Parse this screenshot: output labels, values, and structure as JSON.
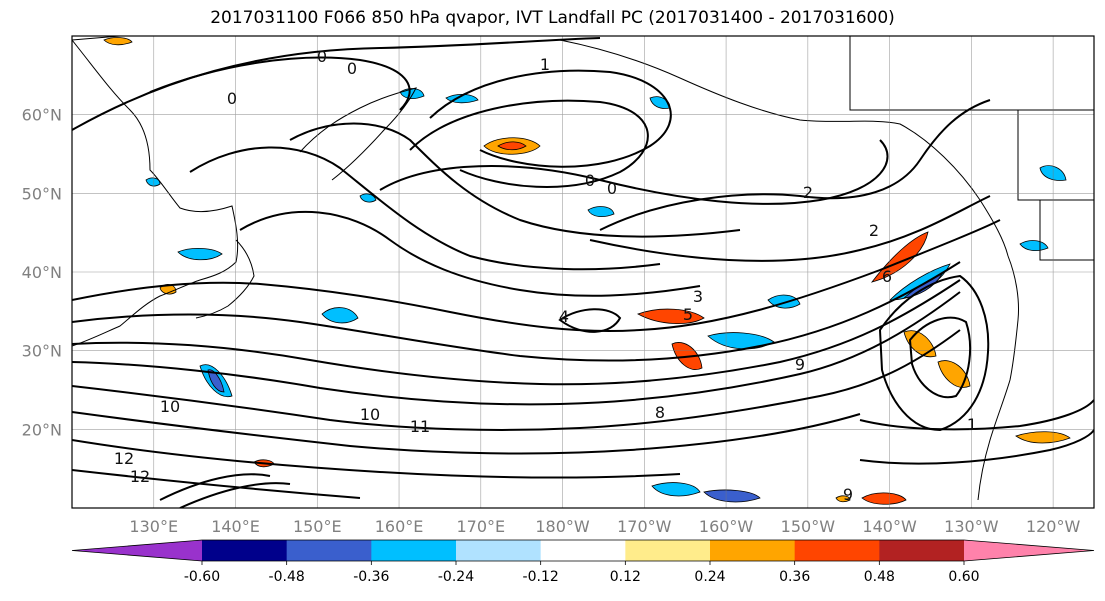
{
  "title": "2017031100 F066 850 hPa qvapor, IVT Landfall PC (2017031400 - 2017031600)",
  "map": {
    "lat_labels": [
      "60°N",
      "50°N",
      "40°N",
      "30°N",
      "20°N"
    ],
    "lon_labels": [
      "130°E",
      "140°E",
      "150°E",
      "160°E",
      "170°E",
      "180°W",
      "170°W",
      "160°W",
      "150°W",
      "140°W",
      "130°W",
      "120°W"
    ],
    "lat_values": [
      60,
      50,
      40,
      30,
      20
    ],
    "lon_values": [
      130,
      140,
      150,
      160,
      170,
      180,
      190,
      200,
      210,
      220,
      230,
      240
    ],
    "lon_range": [
      120,
      245
    ],
    "lat_range": [
      10,
      70
    ],
    "grid": true,
    "contour_labels": [
      "0",
      "0",
      "0",
      "0",
      "0",
      "1",
      "2",
      "2",
      "3",
      "4",
      "5",
      "6",
      "8",
      "9",
      "9",
      "10",
      "10",
      "11",
      "12",
      "12",
      "1"
    ]
  },
  "colorbar": {
    "ticks": [
      "-0.60",
      "-0.48",
      "-0.36",
      "-0.24",
      "-0.12",
      "0.12",
      "0.24",
      "0.36",
      "0.48",
      "0.60"
    ],
    "colors": [
      "#9932cc",
      "#00008b",
      "#3a5fcd",
      "#00bfff",
      "#b0e2ff",
      "#ffffff",
      "#ffec8b",
      "#ffa500",
      "#ff4500",
      "#b22222",
      "#ff82ab"
    ]
  }
}
